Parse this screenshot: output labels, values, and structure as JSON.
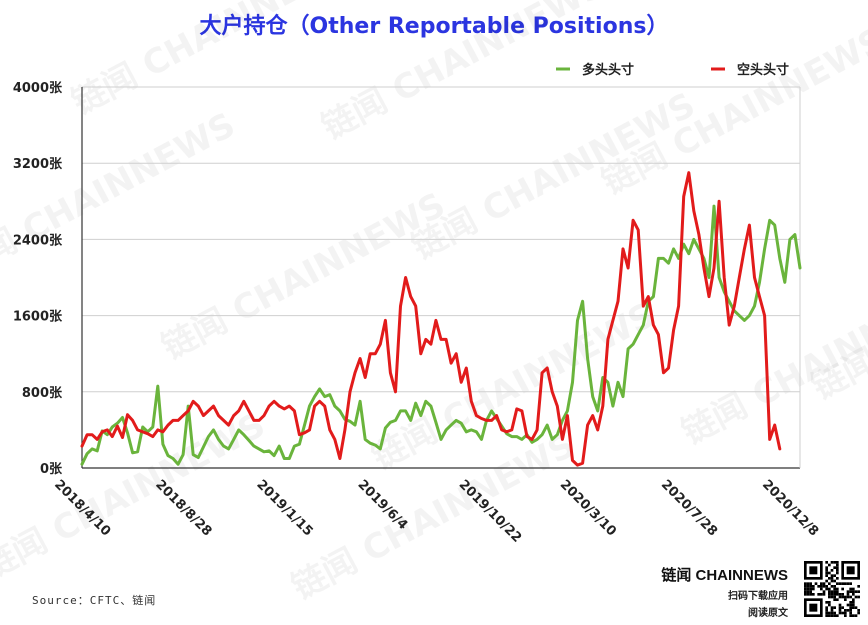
{
  "title": "大户持仓（Other Reportable Positions）",
  "source": "Source：CFTC、链闻",
  "brand": {
    "name": "链闻 CHAINNEWS",
    "line1": "扫码下载应用",
    "line2": "阅读原文"
  },
  "watermark_text": "链闻 CHAINNEWS",
  "chart_data": {
    "type": "line",
    "title": "大户持仓（Other Reportable Positions）",
    "xlabel": "",
    "ylabel": "",
    "ylim": [
      0,
      4000
    ],
    "y_ticks": [
      0,
      800,
      1600,
      2400,
      3200,
      4000
    ],
    "y_tick_labels": [
      "0张",
      "800张",
      "1600张",
      "2400张",
      "3200张",
      "4000张"
    ],
    "x_tick_labels": [
      "2018/4/10",
      "2018/8/28",
      "2019/1/15",
      "2019/6/4",
      "2019/10/22",
      "2020/3/10",
      "2020/7/28",
      "2020/12/8"
    ],
    "x_tick_weeks": [
      0,
      20,
      40,
      60,
      80,
      100,
      120,
      140
    ],
    "grid": true,
    "legend_position": "top-right",
    "series": [
      {
        "name": "多头头寸",
        "color": "#6ab43c",
        "values": [
          40,
          150,
          200,
          180,
          390,
          350,
          430,
          470,
          530,
          370,
          160,
          170,
          430,
          380,
          430,
          860,
          250,
          130,
          100,
          40,
          140,
          650,
          140,
          110,
          220,
          330,
          400,
          300,
          230,
          200,
          300,
          400,
          350,
          290,
          230,
          200,
          170,
          180,
          130,
          230,
          100,
          100,
          230,
          250,
          450,
          650,
          750,
          830,
          750,
          770,
          650,
          600,
          510,
          490,
          450,
          700,
          300,
          260,
          240,
          200,
          420,
          480,
          500,
          600,
          600,
          500,
          680,
          550,
          700,
          650,
          480,
          300,
          400,
          450,
          500,
          470,
          380,
          400,
          380,
          300,
          500,
          600,
          520,
          440,
          360,
          330,
          330,
          300,
          350,
          270,
          300,
          350,
          450,
          300,
          350,
          500,
          600,
          900,
          1550,
          1750,
          1150,
          750,
          600,
          950,
          900,
          650,
          900,
          750,
          1250,
          1300,
          1400,
          1500,
          1750,
          1800,
          2200,
          2200,
          2150,
          2300,
          2200,
          2350,
          2250,
          2400,
          2300,
          2200,
          2000,
          2750,
          2000,
          1850,
          1750,
          1650,
          1600,
          1550,
          1600,
          1700,
          1950,
          2300,
          2600,
          2550,
          2200,
          1950,
          2400,
          2450,
          2100
        ]
      },
      {
        "name": "空头头寸",
        "color": "#e21b1b",
        "values": [
          230,
          350,
          350,
          300,
          380,
          400,
          330,
          440,
          320,
          560,
          500,
          400,
          380,
          360,
          330,
          400,
          380,
          450,
          500,
          500,
          550,
          600,
          700,
          650,
          550,
          600,
          650,
          550,
          500,
          450,
          550,
          600,
          700,
          600,
          500,
          500,
          550,
          650,
          700,
          650,
          620,
          650,
          600,
          350,
          370,
          400,
          650,
          700,
          650,
          400,
          300,
          100,
          400,
          800,
          1000,
          1150,
          950,
          1200,
          1200,
          1300,
          1550,
          1000,
          800,
          1700,
          2000,
          1800,
          1700,
          1200,
          1350,
          1300,
          1550,
          1350,
          1350,
          1100,
          1200,
          900,
          1050,
          700,
          550,
          520,
          500,
          500,
          550,
          400,
          380,
          400,
          620,
          600,
          330,
          300,
          400,
          1000,
          1050,
          800,
          650,
          300,
          550,
          80,
          30,
          50,
          450,
          550,
          400,
          650,
          1350,
          1550,
          1750,
          2300,
          2100,
          2600,
          2500,
          1700,
          1800,
          1500,
          1400,
          1000,
          1050,
          1450,
          1700,
          2850,
          3100,
          2700,
          2450,
          2100,
          1800,
          2100,
          2800,
          2000,
          1500,
          1700,
          2000,
          2300,
          2550,
          2000,
          1800,
          1600,
          300,
          450,
          200
        ]
      }
    ]
  }
}
